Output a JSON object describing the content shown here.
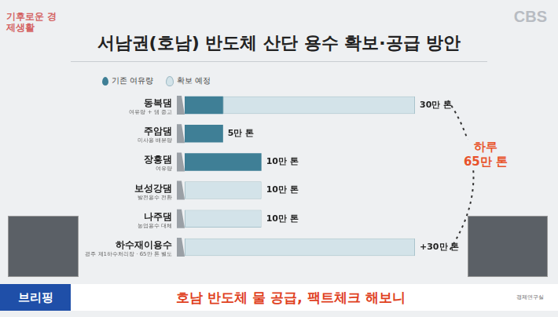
{
  "chart_data": {
    "type": "bar",
    "title": "서남권(호남) 반도체 산단 용수 확보·공급 방안",
    "orientation": "horizontal",
    "stacked": true,
    "categories": [
      "동복댐",
      "주암댐",
      "장흥댐",
      "보성강댐",
      "나주댐",
      "하수재이용수"
    ],
    "category_notes": [
      "여유량 + 댐 증고",
      "미사용 배분량",
      "여유량",
      "발전용수 전환",
      "농업용수 대체",
      "광주 제1하수처리장 · 65만 톤 별도"
    ],
    "series": [
      {
        "name": "기존 여유량",
        "color": "#3f7f96",
        "values": [
          5,
          5,
          10,
          null,
          null,
          null
        ]
      },
      {
        "name": "확보 예정",
        "color": "#d3e3e9",
        "values": [
          25,
          null,
          null,
          10,
          10,
          30
        ]
      }
    ],
    "totals": [
      30,
      5,
      10,
      10,
      10,
      30
    ],
    "total_labels": [
      "30만 톤",
      "5만 톤",
      "10만 톤",
      "10만 톤",
      "10만 톤",
      "+30만 톤"
    ],
    "annotation": "하루 65만 톤",
    "xlim": [
      0,
      30
    ],
    "grid": false,
    "legend": "top-left",
    "tick_labels": "y"
  },
  "header": {
    "logo": "기후로운 경제생활",
    "channel": "CBS"
  },
  "footer": {
    "tag": "브리핑",
    "headline": "호남 반도체 물 공급, 팩트체크 해보니",
    "credit": "경제연구실"
  }
}
